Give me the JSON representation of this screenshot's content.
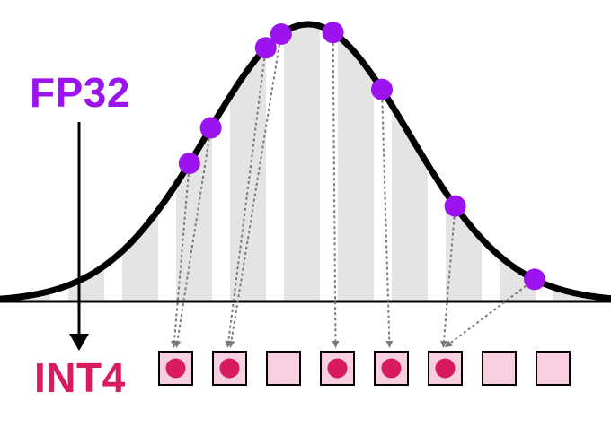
{
  "labels": {
    "source": "FP32",
    "target": "INT4"
  },
  "colors": {
    "source": "#9b14f0",
    "target": "#d81b60",
    "stripe": "#e4e4e4",
    "curve": "#000000",
    "bin_fill": "#f8cfe0",
    "arrow": "#7a7a7a"
  },
  "bins": [
    {
      "filled": true
    },
    {
      "filled": true
    },
    {
      "filled": false
    },
    {
      "filled": true
    },
    {
      "filled": true
    },
    {
      "filled": true
    },
    {
      "filled": false
    },
    {
      "filled": false
    }
  ],
  "points": [
    {
      "t": 0.31,
      "bin": 0
    },
    {
      "t": 0.345,
      "bin": 0
    },
    {
      "t": 0.435,
      "bin": 1
    },
    {
      "t": 0.46,
      "bin": 1
    },
    {
      "t": 0.545,
      "bin": 3
    },
    {
      "t": 0.625,
      "bin": 4
    },
    {
      "t": 0.745,
      "bin": 5
    },
    {
      "t": 0.875,
      "bin": 5
    }
  ]
}
